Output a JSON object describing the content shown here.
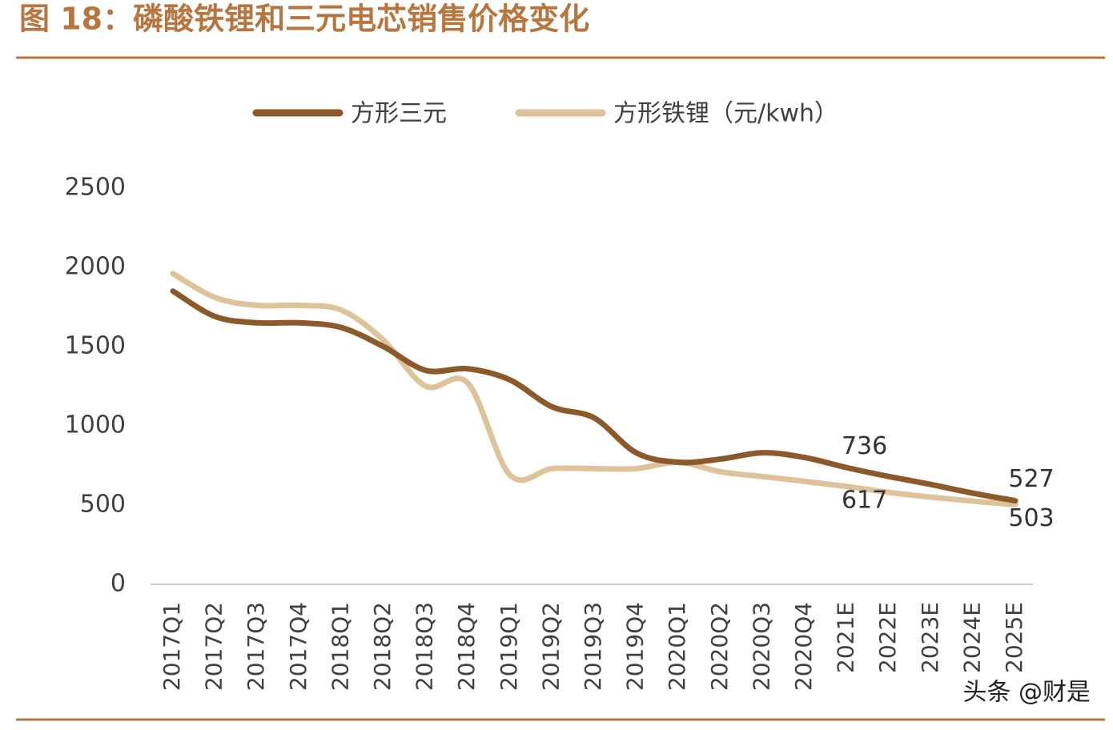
{
  "chart_data": {
    "type": "line",
    "title": "图 18：磷酸铁锂和三元电芯销售价格变化",
    "watermark": "头条 @财是",
    "categories": [
      "2017Q1",
      "2017Q2",
      "2017Q3",
      "2017Q4",
      "2018Q1",
      "2018Q2",
      "2018Q3",
      "2018Q4",
      "2019Q1",
      "2019Q2",
      "2019Q3",
      "2019Q4",
      "2020Q1",
      "2020Q2",
      "2020Q3",
      "2020Q4",
      "2021E",
      "2022E",
      "2023E",
      "2024E",
      "2025E"
    ],
    "series": [
      {
        "name": "方形三元",
        "color": "#8c5a2a",
        "values": [
          1850,
          1690,
          1650,
          1650,
          1620,
          1500,
          1350,
          1360,
          1290,
          1120,
          1050,
          830,
          770,
          790,
          830,
          800,
          736,
          680,
          630,
          575,
          527
        ],
        "value_labels": [
          null,
          null,
          null,
          null,
          null,
          null,
          null,
          null,
          null,
          null,
          null,
          null,
          null,
          null,
          null,
          null,
          "736",
          null,
          null,
          null,
          "527"
        ]
      },
      {
        "name": "方形铁锂（元/kwh）",
        "color": "#dcc39a",
        "values": [
          1960,
          1810,
          1760,
          1760,
          1730,
          1540,
          1250,
          1270,
          690,
          730,
          730,
          730,
          770,
          710,
          680,
          650,
          617,
          580,
          550,
          525,
          503
        ],
        "value_labels": [
          null,
          null,
          null,
          null,
          null,
          null,
          null,
          null,
          null,
          null,
          null,
          null,
          null,
          null,
          null,
          null,
          "617",
          null,
          null,
          null,
          "503"
        ]
      }
    ],
    "ylim": [
      0,
      2500
    ],
    "yticks": [
      0,
      500,
      1000,
      1500,
      2000,
      2500
    ],
    "grid": false
  }
}
